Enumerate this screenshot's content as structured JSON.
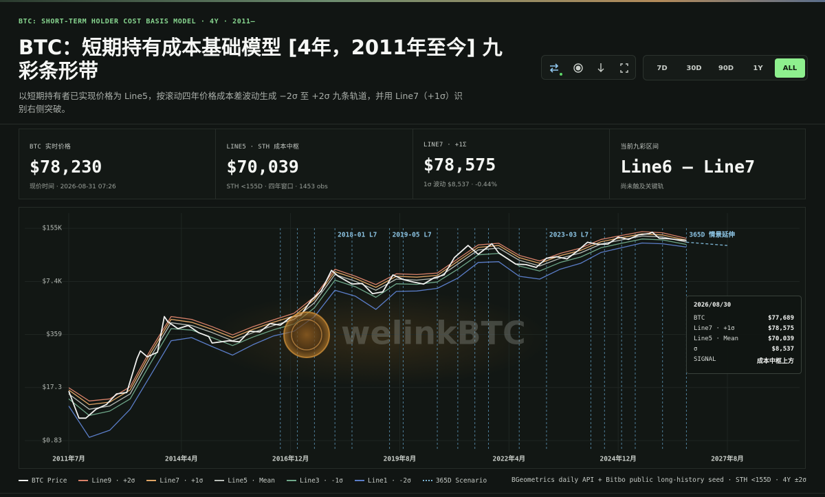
{
  "header": {
    "kicker": "BTC: SHORT-TERM HOLDER COST BASIS MODEL · 4Y · 2011—",
    "title": "BTC：短期持有成本基础模型 [4年，2011年至今] 九彩条形带",
    "subtitle": "以短期持有者已实现价格为 Line5，按滚动四年价格成本差波动生成 −2σ 至 +2σ 九条轨道，并用 Line7（+1σ）识别右侧突破。"
  },
  "toolbar": {
    "ranges": [
      "7D",
      "30D",
      "90D",
      "1Y",
      "ALL"
    ],
    "active_range": 4
  },
  "cards": [
    {
      "label": "BTC 实时价格",
      "value": "$78,230",
      "note": "现价时间 · 2026-08-31 07:26"
    },
    {
      "label": "LINE5 · STH 成本中枢",
      "value": "$70,039",
      "note": "STH <155D · 四年窗口 · 1453 obs"
    },
    {
      "label": "LINE7 · +1Σ",
      "value": "$78,575",
      "note": "1σ 波动 $8,537 · -0.44%"
    },
    {
      "label": "当前九彩区间",
      "value": "Line6 — Line7",
      "note": "尚未触及关键轨"
    }
  ],
  "chart_data": {
    "type": "line",
    "log_scale": true,
    "grid": true,
    "watermark": "welinkBTC",
    "xlim": [
      "2011-07",
      "2027-08"
    ],
    "xticks": [
      {
        "value": "2011-07",
        "label": "2011年7月"
      },
      {
        "value": "2014-04",
        "label": "2014年4月"
      },
      {
        "value": "2016-12",
        "label": "2016年12月"
      },
      {
        "value": "2019-08",
        "label": "2019年8月"
      },
      {
        "value": "2022-04",
        "label": "2022年4月"
      },
      {
        "value": "2024-12",
        "label": "2024年12月"
      },
      {
        "value": "2027-08",
        "label": "2027年8月"
      }
    ],
    "ylim": [
      0.46,
      240000
    ],
    "yticks": [
      {
        "value": 0.83,
        "label": "$0.83"
      },
      {
        "value": 17.3,
        "label": "$17.3"
      },
      {
        "value": 359,
        "label": "$359"
      },
      {
        "value": 7400,
        "label": "$7.4K"
      },
      {
        "value": 155000,
        "label": "$155K"
      }
    ],
    "series": [
      {
        "name": "BTC Price",
        "color": "#f2f2f0",
        "x": [
          "2011-07",
          "2011-10",
          "2011-12",
          "2012-03",
          "2012-06",
          "2012-09",
          "2012-12",
          "2013-03",
          "2013-04",
          "2013-06",
          "2013-09",
          "2013-11",
          "2013-12",
          "2014-03",
          "2014-06",
          "2014-09",
          "2014-12",
          "2015-01",
          "2015-06",
          "2015-09",
          "2015-12",
          "2016-03",
          "2016-06",
          "2016-09",
          "2016-12",
          "2017-03",
          "2017-06",
          "2017-09",
          "2017-12",
          "2018-02",
          "2018-06",
          "2018-09",
          "2018-12",
          "2019-03",
          "2019-06",
          "2019-09",
          "2019-12",
          "2020-03",
          "2020-06",
          "2020-09",
          "2020-12",
          "2021-04",
          "2021-07",
          "2021-11",
          "2022-01",
          "2022-06",
          "2022-09",
          "2022-12",
          "2023-03",
          "2023-06",
          "2023-09",
          "2023-12",
          "2024-03",
          "2024-06",
          "2024-09",
          "2024-12",
          "2025-03",
          "2025-06",
          "2025-09",
          "2025-10",
          "2025-12",
          "2026-03",
          "2026-06",
          "2026-08"
        ],
        "values": [
          14,
          3,
          3,
          5,
          6.5,
          12,
          13,
          90,
          140,
          100,
          130,
          1000,
          750,
          500,
          600,
          400,
          320,
          220,
          250,
          235,
          430,
          415,
          670,
          610,
          960,
          1080,
          2500,
          4300,
          14000,
          10000,
          6400,
          6600,
          3700,
          4100,
          10800,
          8300,
          7200,
          6400,
          9100,
          10800,
          29000,
          58000,
          35000,
          64000,
          38000,
          20000,
          19500,
          16600,
          28000,
          30500,
          27000,
          42000,
          70000,
          62000,
          63000,
          94000,
          82000,
          107000,
          114000,
          124000,
          88000,
          85000,
          80000,
          77689
        ]
      },
      {
        "name": "Line9 · +2σ",
        "color": "#d9826a",
        "x": [
          "2011-07",
          "2012-01",
          "2012-07",
          "2013-01",
          "2013-07",
          "2014-01",
          "2014-07",
          "2015-01",
          "2015-07",
          "2016-01",
          "2016-07",
          "2017-01",
          "2017-07",
          "2018-01",
          "2018-07",
          "2019-01",
          "2019-07",
          "2020-01",
          "2020-07",
          "2021-01",
          "2021-07",
          "2022-01",
          "2022-07",
          "2023-01",
          "2023-07",
          "2024-01",
          "2024-07",
          "2025-01",
          "2025-07",
          "2026-01",
          "2026-08"
        ],
        "values": [
          17,
          8,
          9,
          18,
          150,
          1000,
          850,
          560,
          350,
          560,
          830,
          1200,
          3100,
          15000,
          10000,
          6200,
          11500,
          11000,
          12000,
          27000,
          60000,
          66000,
          33000,
          24000,
          37000,
          50000,
          82000,
          103000,
          128000,
          120000,
          87112
        ]
      },
      {
        "name": "Line7 · +1σ",
        "color": "#e0a565",
        "x": [
          "2011-07",
          "2012-01",
          "2012-07",
          "2013-01",
          "2013-07",
          "2014-01",
          "2014-07",
          "2015-01",
          "2015-07",
          "2016-01",
          "2016-07",
          "2017-01",
          "2017-07",
          "2018-01",
          "2018-07",
          "2019-01",
          "2019-07",
          "2020-01",
          "2020-07",
          "2021-01",
          "2021-07",
          "2022-01",
          "2022-07",
          "2023-01",
          "2023-07",
          "2024-01",
          "2024-07",
          "2025-01",
          "2025-07",
          "2026-01",
          "2026-08"
        ],
        "values": [
          15,
          6.5,
          7.5,
          15,
          125,
          850,
          720,
          480,
          300,
          480,
          720,
          1030,
          2650,
          13000,
          8800,
          5300,
          10000,
          9500,
          10500,
          23500,
          52000,
          58000,
          29000,
          21000,
          32500,
          44000,
          72000,
          91000,
          113000,
          106000,
          78575
        ]
      },
      {
        "name": "Line5 · Mean",
        "color": "#b9beb8",
        "x": [
          "2011-07",
          "2012-01",
          "2012-07",
          "2013-01",
          "2013-07",
          "2014-01",
          "2014-07",
          "2015-01",
          "2015-07",
          "2016-01",
          "2016-07",
          "2017-01",
          "2017-07",
          "2018-01",
          "2018-07",
          "2019-01",
          "2019-07",
          "2020-01",
          "2020-07",
          "2021-01",
          "2021-07",
          "2022-01",
          "2022-07",
          "2023-01",
          "2023-07",
          "2024-01",
          "2024-07",
          "2025-01",
          "2025-07",
          "2026-01",
          "2026-08"
        ],
        "values": [
          12,
          5,
          6,
          12,
          100,
          700,
          600,
          400,
          250,
          400,
          600,
          850,
          2200,
          11000,
          7500,
          4500,
          8500,
          8000,
          9000,
          20000,
          45000,
          50000,
          25000,
          18000,
          28000,
          38000,
          63000,
          80000,
          100000,
          95000,
          70039
        ]
      },
      {
        "name": "Line3 · -1σ",
        "color": "#6fa88a",
        "x": [
          "2011-07",
          "2012-01",
          "2012-07",
          "2013-01",
          "2013-07",
          "2014-01",
          "2014-07",
          "2015-01",
          "2015-07",
          "2016-01",
          "2016-07",
          "2017-01",
          "2017-07",
          "2018-01",
          "2018-07",
          "2019-01",
          "2019-07",
          "2020-01",
          "2020-07",
          "2021-01",
          "2021-07",
          "2022-01",
          "2022-07",
          "2023-01",
          "2023-07",
          "2024-01",
          "2024-07",
          "2025-01",
          "2025-07",
          "2026-01",
          "2026-08"
        ],
        "values": [
          9,
          3.5,
          4.5,
          9,
          70,
          500,
          460,
          300,
          190,
          310,
          470,
          650,
          1650,
          8000,
          5500,
          3000,
          6500,
          6300,
          7200,
          15000,
          34000,
          37000,
          18000,
          13500,
          22000,
          30000,
          51000,
          66000,
          84000,
          80000,
          61502
        ]
      },
      {
        "name": "Line1 · -2σ",
        "color": "#5b7ec9",
        "x": [
          "2011-07",
          "2012-01",
          "2012-07",
          "2013-01",
          "2013-07",
          "2014-01",
          "2014-07",
          "2015-01",
          "2015-07",
          "2016-01",
          "2016-07",
          "2017-01",
          "2017-07",
          "2018-01",
          "2018-07",
          "2019-01",
          "2019-07",
          "2020-01",
          "2020-07",
          "2021-01",
          "2021-07",
          "2022-01",
          "2022-07",
          "2023-01",
          "2023-07",
          "2024-01",
          "2024-07",
          "2025-01",
          "2025-07",
          "2026-01",
          "2026-08"
        ],
        "values": [
          6,
          1,
          1.5,
          5,
          35,
          250,
          300,
          180,
          110,
          200,
          330,
          430,
          1000,
          4500,
          3200,
          1500,
          4200,
          4300,
          5000,
          9000,
          22000,
          23000,
          10000,
          8500,
          15000,
          21000,
          39000,
          51000,
          67000,
          64000,
          52965
        ]
      },
      {
        "name": "365D Scenario",
        "color": "#7fb8d8",
        "dashed": true,
        "x": [
          "2026-08",
          "2027-08"
        ],
        "values": [
          70039,
          58000
        ]
      }
    ],
    "events": [
      {
        "x": "2016-09",
        "label": null
      },
      {
        "x": "2017-02",
        "label": null
      },
      {
        "x": "2017-07",
        "label": null
      },
      {
        "x": "2018-01",
        "label": "2018-01 L7"
      },
      {
        "x": "2018-06",
        "label": null
      },
      {
        "x": "2019-05",
        "label": "2019-05 L7"
      },
      {
        "x": "2019-09",
        "label": null
      },
      {
        "x": "2020-07",
        "label": null
      },
      {
        "x": "2021-01",
        "label": null
      },
      {
        "x": "2021-06",
        "label": null
      },
      {
        "x": "2021-10",
        "label": null
      },
      {
        "x": "2022-07",
        "label": null
      },
      {
        "x": "2023-03",
        "label": "2023-03 L7"
      },
      {
        "x": "2024-04",
        "label": null
      },
      {
        "x": "2024-08",
        "label": null
      },
      {
        "x": "2025-01",
        "label": null
      },
      {
        "x": "2025-05",
        "label": null
      },
      {
        "x": "2026-01",
        "label": null
      },
      {
        "x": "2026-08",
        "label": "365D 情景延伸"
      }
    ],
    "tooltip": {
      "date": "2026/08/30",
      "rows": [
        [
          "BTC",
          "$77,689"
        ],
        [
          "Line7 · +1σ",
          "$78,575"
        ],
        [
          "Line5 · Mean",
          "$70,039"
        ],
        [
          "σ",
          "$8,537"
        ],
        [
          "SIGNAL",
          "成本中枢上方"
        ]
      ]
    },
    "source": "BGeometrics daily API + Bitbo public long-history seed · STH <155D · 4Y ±2σ"
  }
}
